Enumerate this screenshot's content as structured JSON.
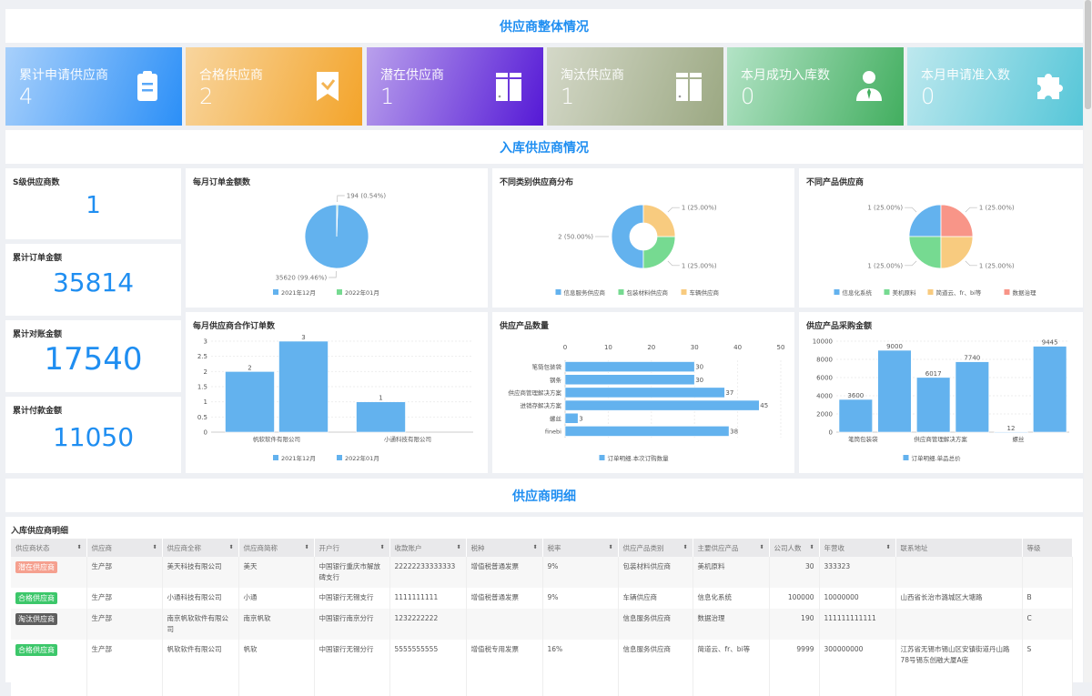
{
  "sections": {
    "overview": "供应商整体情况",
    "inbound": "入库供应商情况",
    "detail": "供应商明细"
  },
  "cards": [
    {
      "label": "累计申请供应商",
      "value": "4",
      "icon": "clipboard-icon",
      "from": "#a8d0fb",
      "to": "#2b8ff7"
    },
    {
      "label": "合格供应商",
      "value": "2",
      "icon": "bookmark-check-icon",
      "from": "#f8d59e",
      "to": "#f3a42a"
    },
    {
      "label": "潜在供应商",
      "value": "1",
      "icon": "columns-icon",
      "from": "#b9a0ec",
      "to": "#5519d6"
    },
    {
      "label": "淘汰供应商",
      "value": "1",
      "icon": "columns-icon",
      "from": "#d4d8c8",
      "to": "#9ba882"
    },
    {
      "label": "本月成功入库数",
      "value": "0",
      "icon": "user-tie-icon",
      "from": "#b3e3c6",
      "to": "#42ae5f"
    },
    {
      "label": "本月申请准入数",
      "value": "0",
      "icon": "puzzle-icon",
      "from": "#bde8ee",
      "to": "#55c6d8"
    }
  ],
  "stats": [
    {
      "label": "S级供应商数",
      "value": "1"
    },
    {
      "label": "累计订单金额",
      "value": "35814"
    },
    {
      "label": "累计对账金额",
      "value": "17540"
    },
    {
      "label": "累计付款金额",
      "value": "11050"
    }
  ],
  "colors": {
    "blue": "#63b2ee",
    "green": "#76da91",
    "yellow": "#f8cb7f",
    "red": "#f89588",
    "accent": "#1f8ef1"
  },
  "chart_data": [
    {
      "type": "pie",
      "title": "每月订单金额数",
      "slices": [
        {
          "name": "2021年12月",
          "value": 35620,
          "label": "35620 (99.46%)",
          "color": "#63b2ee"
        },
        {
          "name": "2022年01月",
          "value": 194,
          "label": "194 (0.54%)",
          "color": "#76da91"
        }
      ],
      "legend": "bottom"
    },
    {
      "type": "pie",
      "variant": "donut",
      "title": "不同类别供应商分布",
      "slices": [
        {
          "name": "信息服务供应商",
          "value": 2,
          "label": "2 (50.00%)",
          "color": "#63b2ee"
        },
        {
          "name": "包装材料供应商",
          "value": 1,
          "label": "1 (25.00%)",
          "color": "#76da91"
        },
        {
          "name": "车辆供应商",
          "value": 1,
          "label": "1 (25.00%)",
          "color": "#f8cb7f"
        }
      ],
      "legend": "bottom"
    },
    {
      "type": "pie",
      "title": "不同产品供应商",
      "slices": [
        {
          "name": "信息化系统",
          "value": 1,
          "label": "1 (25.00%)",
          "color": "#63b2ee"
        },
        {
          "name": "美机原料",
          "value": 1,
          "label": "1 (25.00%)",
          "color": "#76da91"
        },
        {
          "name": "简道云、fr、bi等",
          "value": 1,
          "label": "1 (25.00%)",
          "color": "#f8cb7f"
        },
        {
          "name": "数据治理",
          "value": 1,
          "label": "1 (25.00%)",
          "color": "#f89588"
        }
      ],
      "legend": "bottom"
    },
    {
      "type": "bar",
      "title": "每月供应商合作订单数",
      "categories": [
        "帆软软件有限公司",
        "小通科技有限公司"
      ],
      "series": [
        {
          "name": "2021年12月",
          "values": [
            2,
            1
          ]
        },
        {
          "name": "2022年01月",
          "values": [
            3,
            null
          ]
        }
      ],
      "ylim": [
        0,
        3
      ],
      "yticks": [
        "0",
        "0.5",
        "1",
        "1.5",
        "2",
        "2.5",
        "3"
      ],
      "grid": true,
      "legend": "bottom"
    },
    {
      "type": "bar",
      "orientation": "horizontal",
      "title": "供应产品数量",
      "categories": [
        "笔筒包装袋",
        "钢条",
        "供应商管理解决方案",
        "进销存解决方案",
        "螺丝",
        "finebi"
      ],
      "series": [
        {
          "name": "订单明细.本次订购数量",
          "values": [
            30,
            30,
            37,
            45,
            3,
            38
          ]
        }
      ],
      "xlim": [
        0,
        50
      ],
      "xticks": [
        "0",
        "10",
        "20",
        "30",
        "40",
        "50"
      ],
      "grid": true,
      "legend": "bottom"
    },
    {
      "type": "bar",
      "title": "供应产品采购金额",
      "categories": [
        "笔筒包装袋",
        "",
        "供应商管理解决方案",
        "",
        "螺丝",
        ""
      ],
      "series": [
        {
          "name": "订单明细.单品总价",
          "values": [
            3600,
            9000,
            6017,
            7740,
            12,
            9445
          ]
        }
      ],
      "ylim": [
        0,
        10000
      ],
      "yticks": [
        "0",
        "2000",
        "4000",
        "6000",
        "8000",
        "10000"
      ],
      "grid": true,
      "legend": "bottom"
    }
  ],
  "table": {
    "title": "入库供应商明细",
    "columns": [
      "供应商状态",
      "供应商",
      "供应商全称",
      "供应商简称",
      "开户行",
      "收款账户",
      "税种",
      "税率",
      "供应产品类别",
      "主要供应产品",
      "公司人数",
      "年营收",
      "联系地址",
      "等级"
    ],
    "rows": [
      {
        "status": "潜在供应商",
        "status_color": "#f5a08f",
        "cells": [
          "生产部",
          "美天科技有限公司",
          "美天",
          "中国银行重庆市解放碑支行",
          "22222233333333",
          "增值税普通发票",
          "9%",
          "包装材料供应商",
          "美机原料",
          "30",
          "333323",
          "",
          ""
        ]
      },
      {
        "status": "合格供应商",
        "status_color": "#3cc76a",
        "cells": [
          "生产部",
          "小通科技有限公司",
          "小通",
          "中国银行无锡支行",
          "1111111111",
          "增值税普通发票",
          "9%",
          "车辆供应商",
          "信息化系统",
          "100000",
          "10000000",
          "山西省长治市潞城区大塘路",
          "B"
        ]
      },
      {
        "status": "淘汰供应商",
        "status_color": "#5e5e5e",
        "cells": [
          "生产部",
          "南京帆软软件有限公司",
          "南京帆软",
          "中国银行南京分行",
          "1232222222",
          "",
          "",
          "信息服务供应商",
          "数据治理",
          "190",
          "111111111111",
          "",
          "C"
        ]
      },
      {
        "status": "合格供应商",
        "status_color": "#3cc76a",
        "cells": [
          "生产部",
          "帆软软件有限公司",
          "帆软",
          "中国银行无锡分行",
          "5555555555",
          "增值税专用发票",
          "16%",
          "信息服务供应商",
          "简道云、fr、bi等",
          "9999",
          "300000000",
          "江苏省无锡市锡山区安镇街道丹山路78号锡东创融大厦A座",
          "S"
        ]
      }
    ]
  }
}
